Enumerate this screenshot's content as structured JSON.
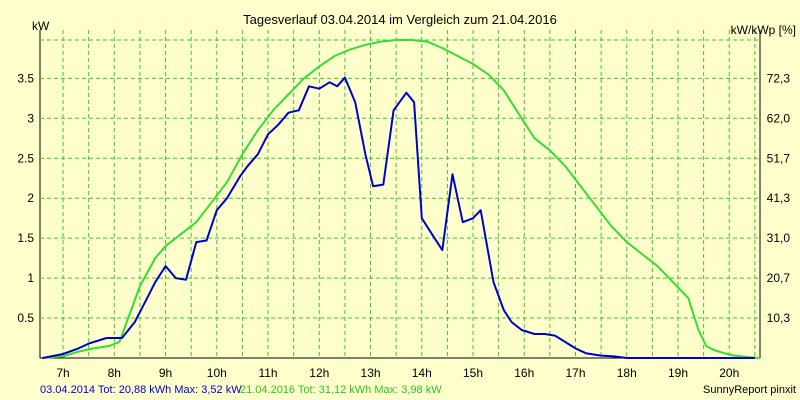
{
  "chart_data": {
    "type": "line",
    "title": "Tagesverlauf 03.04.2014 im Vergleich zum 21.04.2016",
    "ylabel_left": "kW",
    "ylabel_right": "kW/kWp [%]",
    "ylim": [
      0,
      3.98
    ],
    "grid": true,
    "x_ticks": [
      "7h",
      "8h",
      "9h",
      "10h",
      "11h",
      "12h",
      "13h",
      "14h",
      "15h",
      "16h",
      "17h",
      "18h",
      "19h",
      "20h"
    ],
    "y_ticks_left": [
      "0.5",
      "1",
      "1.5",
      "2",
      "2.5",
      "3",
      "3.5"
    ],
    "y_ticks_left_values": [
      0.5,
      1,
      1.5,
      2,
      2.5,
      3,
      3.5
    ],
    "y_ticks_right": [
      "10,3",
      "20,7",
      "31,0",
      "41,3",
      "51,7",
      "62,0",
      "72,3"
    ],
    "series": [
      {
        "name": "03.04.2014",
        "color": "#0000cc",
        "x": [
          6.6,
          7.0,
          7.3,
          7.5,
          7.85,
          8.15,
          8.4,
          8.6,
          8.8,
          9.0,
          9.2,
          9.4,
          9.6,
          9.8,
          10.0,
          10.2,
          10.45,
          10.6,
          10.8,
          11.0,
          11.2,
          11.4,
          11.6,
          11.8,
          12.0,
          12.2,
          12.35,
          12.5,
          12.7,
          12.9,
          13.05,
          13.25,
          13.45,
          13.7,
          13.85,
          14.0,
          14.2,
          14.4,
          14.6,
          14.8,
          15.0,
          15.15,
          15.4,
          15.6,
          15.75,
          15.95,
          16.2,
          16.4,
          16.6,
          16.8,
          17.0,
          17.2,
          17.5,
          17.75,
          18.0,
          18.2,
          18.5,
          18.8,
          19.0,
          19.2,
          19.5,
          19.8,
          20.0,
          20.2,
          20.5
        ],
        "y": [
          0.0,
          0.05,
          0.12,
          0.18,
          0.25,
          0.25,
          0.45,
          0.7,
          0.95,
          1.15,
          1.0,
          0.98,
          1.45,
          1.47,
          1.85,
          2.0,
          2.27,
          2.4,
          2.55,
          2.8,
          2.92,
          3.07,
          3.1,
          3.4,
          3.37,
          3.45,
          3.4,
          3.51,
          3.2,
          2.55,
          2.15,
          2.17,
          3.1,
          3.32,
          3.2,
          1.75,
          1.55,
          1.35,
          2.3,
          1.7,
          1.75,
          1.85,
          0.95,
          0.6,
          0.45,
          0.35,
          0.3,
          0.3,
          0.28,
          0.2,
          0.12,
          0.06,
          0.03,
          0.02,
          0.0,
          0.0,
          0.0,
          0.0,
          0.0,
          0.0,
          0.0,
          0.0,
          0.0,
          0.0,
          0.0
        ]
      },
      {
        "name": "21.04.2016",
        "color": "#33dd33",
        "x": [
          6.6,
          7.0,
          7.3,
          7.6,
          7.9,
          8.1,
          8.3,
          8.5,
          8.8,
          9.0,
          9.3,
          9.6,
          9.9,
          10.2,
          10.5,
          10.8,
          11.1,
          11.4,
          11.7,
          12.0,
          12.3,
          12.6,
          12.9,
          13.2,
          13.5,
          13.8,
          14.1,
          14.4,
          14.7,
          15.0,
          15.3,
          15.6,
          15.9,
          16.2,
          16.5,
          16.8,
          17.1,
          17.4,
          17.7,
          18.0,
          18.3,
          18.6,
          18.9,
          19.2,
          19.4,
          19.55,
          19.7,
          19.9,
          20.1,
          20.4,
          20.6
        ],
        "y": [
          0.0,
          0.02,
          0.08,
          0.12,
          0.15,
          0.2,
          0.55,
          0.9,
          1.25,
          1.4,
          1.55,
          1.7,
          1.95,
          2.2,
          2.55,
          2.85,
          3.1,
          3.3,
          3.5,
          3.65,
          3.78,
          3.86,
          3.92,
          3.96,
          3.98,
          3.98,
          3.96,
          3.88,
          3.78,
          3.68,
          3.55,
          3.35,
          3.05,
          2.75,
          2.6,
          2.4,
          2.15,
          1.9,
          1.65,
          1.45,
          1.3,
          1.15,
          0.95,
          0.75,
          0.35,
          0.15,
          0.1,
          0.06,
          0.03,
          0.01,
          0.0
        ]
      }
    ]
  },
  "footer": {
    "left_info_1": "03.04.2014 Tot: 20,88 kWh Max: 3,52 kW",
    "left_info_2": "21.04.2016 Tot: 31,12 kWh Max: 3,98 kW",
    "right_credit": "SunnyReport pinxit"
  }
}
